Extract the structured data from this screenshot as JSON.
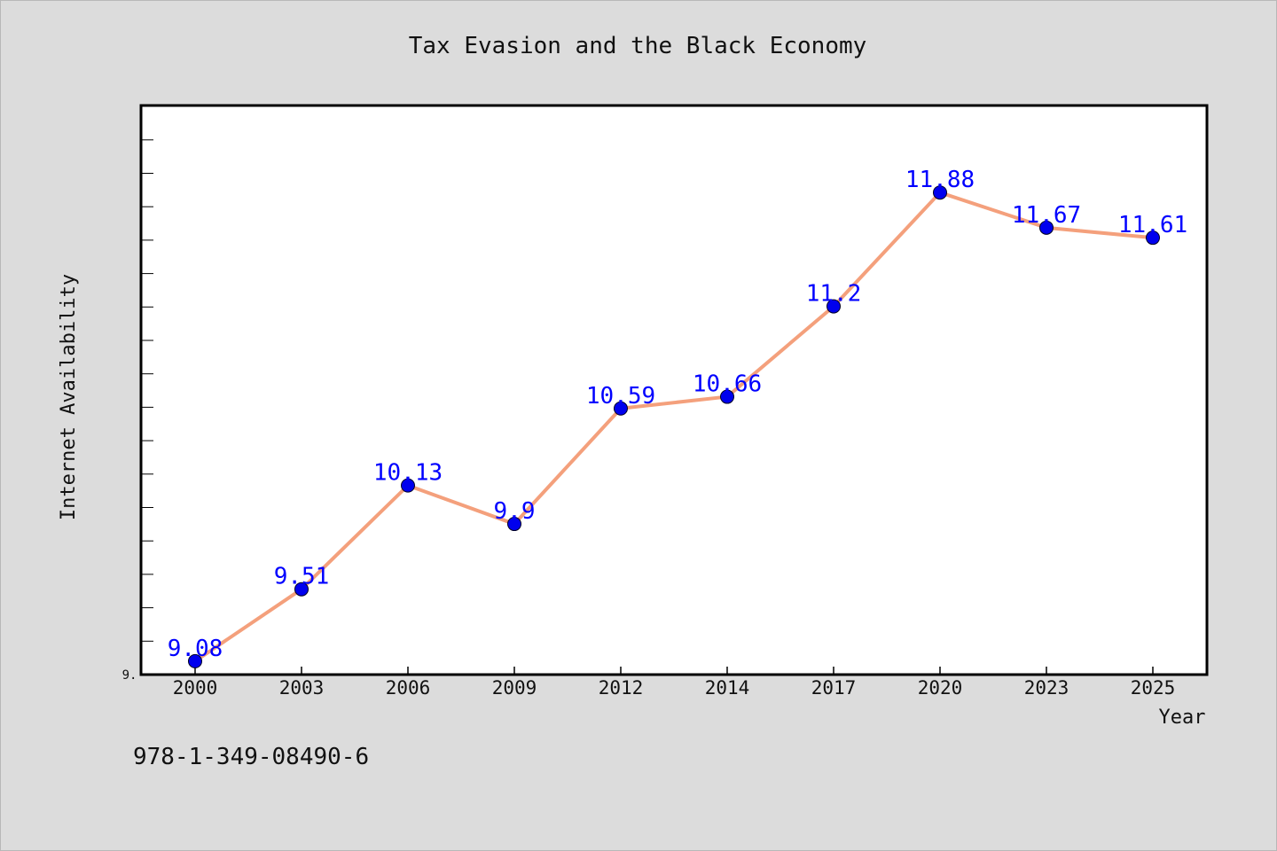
{
  "chart_data": {
    "type": "line",
    "title": "Tax Evasion and the Black Economy",
    "xlabel": "Year",
    "ylabel": "Internet Availability",
    "categories": [
      "2000",
      "2003",
      "2006",
      "2009",
      "2012",
      "2014",
      "2017",
      "2020",
      "2023",
      "2025"
    ],
    "values": [
      9.08,
      9.51,
      10.13,
      9.9,
      10.59,
      10.66,
      11.2,
      11.88,
      11.67,
      11.61
    ],
    "data_labels": [
      "9.08",
      "9.51",
      "10.13",
      "9.9",
      "10.59",
      "10.66",
      "11.2",
      "11.88",
      "11.67",
      "11.61"
    ],
    "y_tick_labels": [
      "9."
    ],
    "ylim": [
      9.0,
      12.4
    ],
    "grid": false,
    "legend": "none",
    "colors": {
      "line": "#f4a07c",
      "marker": "#0000ee",
      "label": "#0000ff",
      "background": "#dcdcdc",
      "plot_background": "#ffffff"
    }
  },
  "footer_text": "978-1-349-08490-6"
}
